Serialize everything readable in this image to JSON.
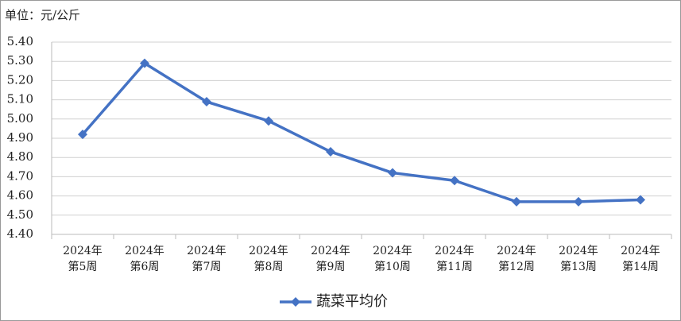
{
  "chart_data": {
    "type": "line",
    "subtitle": "单位：元/公斤",
    "categories": [
      "2024年\n第5周",
      "2024年\n第6周",
      "2024年\n第7周",
      "2024年\n第8周",
      "2024年\n第9周",
      "2024年\n第10周",
      "2024年\n第11周",
      "2024年\n第12周",
      "2024年\n第13周",
      "2024年\n第14周"
    ],
    "series": [
      {
        "name": "蔬菜平均价",
        "color": "#4472c4",
        "values": [
          4.92,
          5.29,
          5.09,
          4.99,
          4.83,
          4.72,
          4.68,
          4.57,
          4.57,
          4.58
        ]
      }
    ],
    "ylim": [
      4.4,
      5.4
    ],
    "yticks": [
      {
        "value": 4.4,
        "label": "4.40"
      },
      {
        "value": 4.5,
        "label": "4.50"
      },
      {
        "value": 4.6,
        "label": "4.60"
      },
      {
        "value": 4.7,
        "label": "4.70"
      },
      {
        "value": 4.8,
        "label": "4.80"
      },
      {
        "value": 4.9,
        "label": "4.90"
      },
      {
        "value": 5.0,
        "label": "5.00"
      },
      {
        "value": 5.1,
        "label": "5.10"
      },
      {
        "value": 5.2,
        "label": "5.20"
      },
      {
        "value": 5.3,
        "label": "5.30"
      },
      {
        "value": 5.4,
        "label": "5.40"
      }
    ],
    "grid": true,
    "legend": "bottom"
  }
}
